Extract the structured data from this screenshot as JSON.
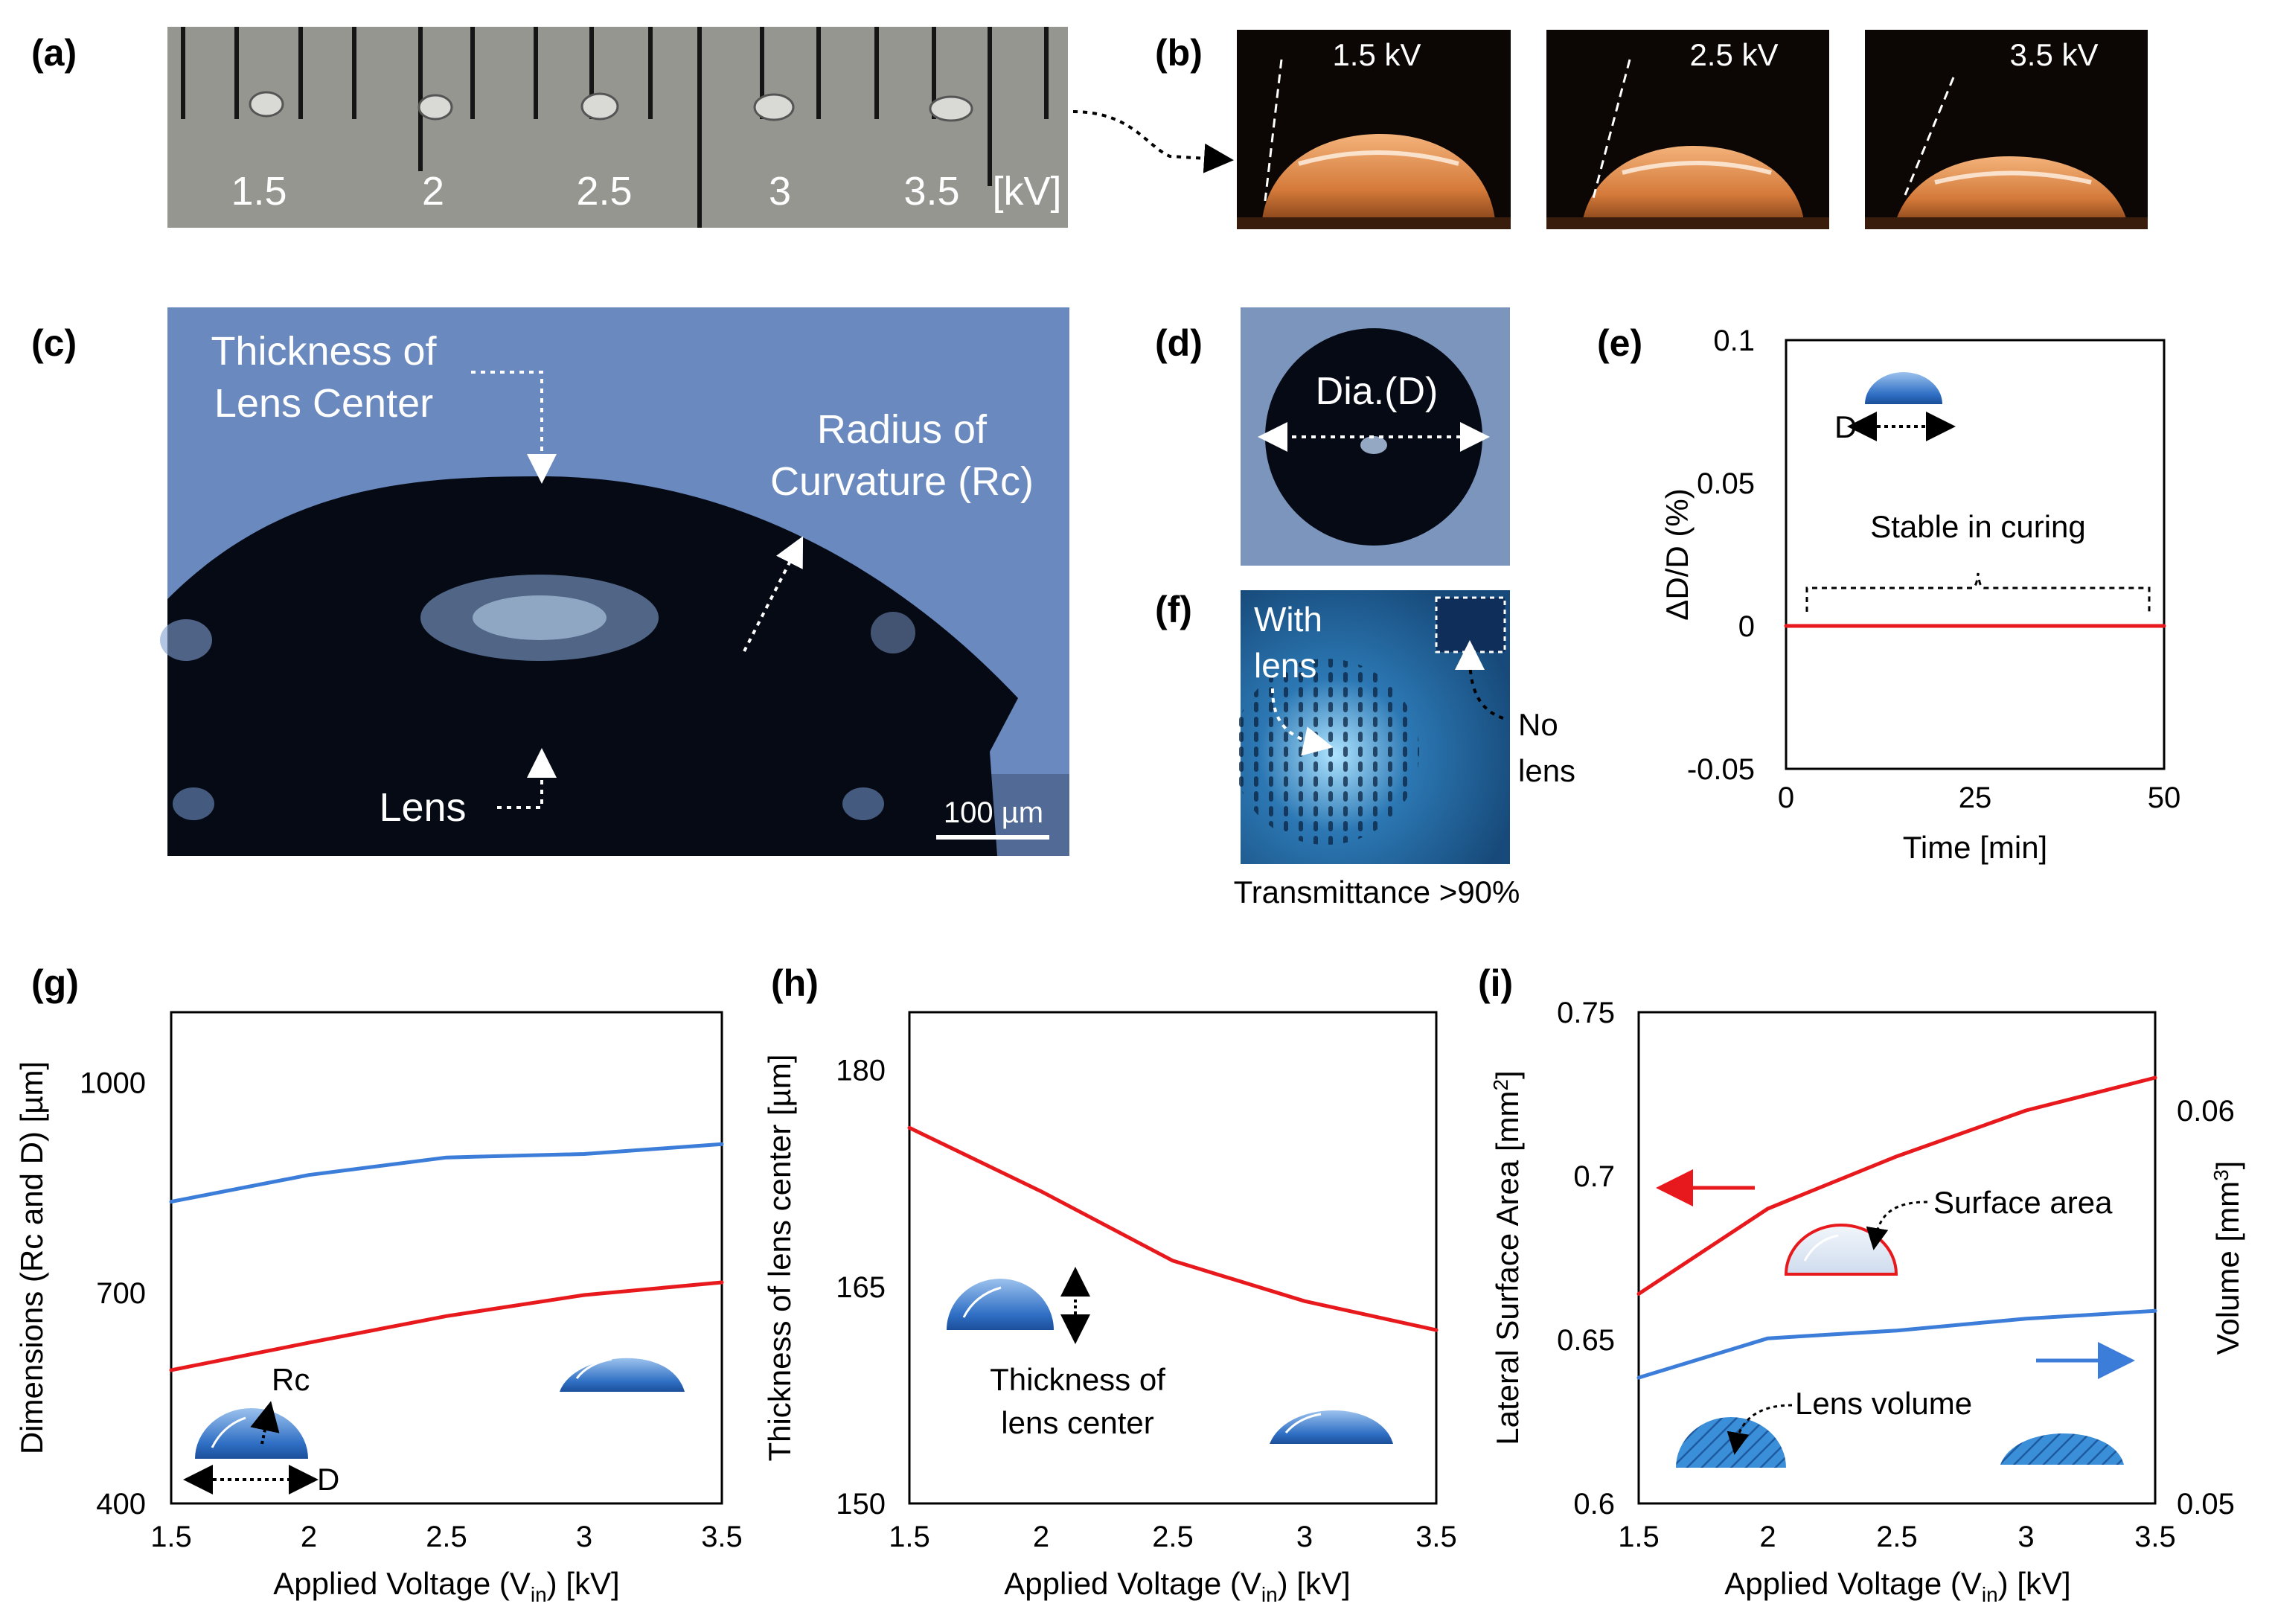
{
  "panel_labels": {
    "a": "(a)",
    "b": "(b)",
    "c": "(c)",
    "d": "(d)",
    "e": "(e)",
    "f": "(f)",
    "g": "(g)",
    "h": "(h)",
    "i": "(i)"
  },
  "panel_a": {
    "scale_labels": [
      "1.5",
      "2",
      "2.5",
      "3",
      "3.5"
    ],
    "unit": "[kV]"
  },
  "panel_b": {
    "photo_labels": [
      "1.5 kV",
      "2.5 kV",
      "3.5 kV"
    ]
  },
  "panel_c": {
    "thickness_line1": "Thickness of",
    "thickness_line2": "Lens Center",
    "radius_line1": "Radius of",
    "radius_line2": "Curvature (Rc)",
    "lens_label": "Lens",
    "scale_bar": "100 µm"
  },
  "panel_d": {
    "label": "Dia.(D)"
  },
  "panel_f": {
    "with_line1": "With",
    "with_line2": "lens",
    "no_line1": "No",
    "no_line2": "lens",
    "caption": "Transmittance >90%"
  },
  "panel_e_extra": {
    "d_label": "D",
    "stable_label": "Stable in curing"
  },
  "panel_g_extra": {
    "rc_label": "Rc",
    "d_label": "D"
  },
  "panel_h_extra": {
    "line1": "Thickness of",
    "line2": "lens center"
  },
  "panel_i_extra": {
    "surface_label": "Surface area",
    "volume_label": "Lens volume"
  },
  "colors": {
    "red": "#e8191c",
    "blue": "#3b7dd8",
    "photo_blue": "#6a89bf"
  },
  "chart_data": [
    {
      "id": "e",
      "type": "line",
      "title": "",
      "xlabel": "Time [min]",
      "ylabel": "ΔD/D (%)",
      "xlim": [
        0,
        50
      ],
      "ylim": [
        -0.05,
        0.1
      ],
      "xticks": [
        0,
        25,
        50
      ],
      "xtick_labels": [
        "0",
        "25",
        "50"
      ],
      "yticks": [
        -0.05,
        0,
        0.05,
        0.1
      ],
      "ytick_labels": [
        "-0.05",
        "0",
        "0.05",
        "0.1"
      ],
      "series": [
        {
          "name": "ΔD/D",
          "color": "red",
          "x": [
            0,
            50
          ],
          "y": [
            0,
            0
          ]
        }
      ]
    },
    {
      "id": "g",
      "type": "line",
      "title": "",
      "xlabel": "Applied Voltage (V",
      "xlabel_sub": "in",
      "xlabel_end": ") [kV]",
      "ylabel": "Dimensions (Rc and D) [µm]",
      "xlim": [
        1.5,
        3.5
      ],
      "ylim": [
        400,
        1100
      ],
      "xticks": [
        1.5,
        2,
        2.5,
        3,
        3.5
      ],
      "xtick_labels": [
        "1.5",
        "2",
        "2.5",
        "3",
        "3.5"
      ],
      "yticks": [
        400,
        700,
        1000
      ],
      "ytick_labels": [
        "400",
        "700",
        "1000"
      ],
      "series": [
        {
          "name": "D",
          "color": "blue",
          "x": [
            1.5,
            2,
            2.5,
            3,
            3.5
          ],
          "y": [
            830,
            868,
            893,
            898,
            912
          ]
        },
        {
          "name": "Rc",
          "color": "red",
          "x": [
            1.5,
            2,
            2.5,
            3,
            3.5
          ],
          "y": [
            590,
            629,
            667,
            697,
            715
          ]
        }
      ]
    },
    {
      "id": "h",
      "type": "line",
      "title": "",
      "xlabel": "Applied Voltage (V",
      "xlabel_sub": "in",
      "xlabel_end": ") [kV]",
      "ylabel": "Thickness of lens center [µm]",
      "xlim": [
        1.5,
        3.5
      ],
      "ylim": [
        150,
        184
      ],
      "xticks": [
        1.5,
        2,
        2.5,
        3,
        3.5
      ],
      "xtick_labels": [
        "1.5",
        "2",
        "2.5",
        "3",
        "3.5"
      ],
      "yticks": [
        150,
        165,
        180
      ],
      "ytick_labels": [
        "150",
        "165",
        "180"
      ],
      "series": [
        {
          "name": "Thickness of lens center",
          "color": "red",
          "x": [
            1.5,
            2,
            2.5,
            3,
            3.5
          ],
          "y": [
            176,
            171.6,
            166.8,
            164,
            162
          ]
        }
      ]
    },
    {
      "id": "i",
      "type": "line",
      "title": "",
      "xlabel": "Applied Voltage (V",
      "xlabel_sub": "in",
      "xlabel_end": ") [kV]",
      "ylabel": "Lateral Surface Area [mm",
      "ylabel_sup": "2",
      "ylabel_end": "]",
      "ylabel2": "Volume [mm",
      "ylabel2_sup": "3",
      "ylabel2_end": "]",
      "xlim": [
        1.5,
        3.5
      ],
      "ylim": [
        0.6,
        0.75
      ],
      "ylim2": [
        0.05,
        0.0625
      ],
      "xticks": [
        1.5,
        2,
        2.5,
        3,
        3.5
      ],
      "xtick_labels": [
        "1.5",
        "2",
        "2.5",
        "3",
        "3.5"
      ],
      "yticks": [
        0.6,
        0.65,
        0.7,
        0.75
      ],
      "ytick_labels": [
        "0.6",
        "0.65",
        "0.7",
        "0.75"
      ],
      "yticks2": [
        0.05,
        0.06
      ],
      "ytick2_labels": [
        "0.05",
        "0.06"
      ],
      "series": [
        {
          "name": "Surface area",
          "color": "red",
          "axis": "left",
          "x": [
            1.5,
            2,
            2.5,
            3,
            3.5
          ],
          "y": [
            0.664,
            0.69,
            0.706,
            0.72,
            0.73
          ]
        },
        {
          "name": "Lens volume",
          "color": "blue",
          "axis": "right",
          "x": [
            1.5,
            2,
            2.5,
            3,
            3.5
          ],
          "y": [
            0.0532,
            0.0542,
            0.0544,
            0.0547,
            0.0549
          ]
        }
      ]
    }
  ]
}
